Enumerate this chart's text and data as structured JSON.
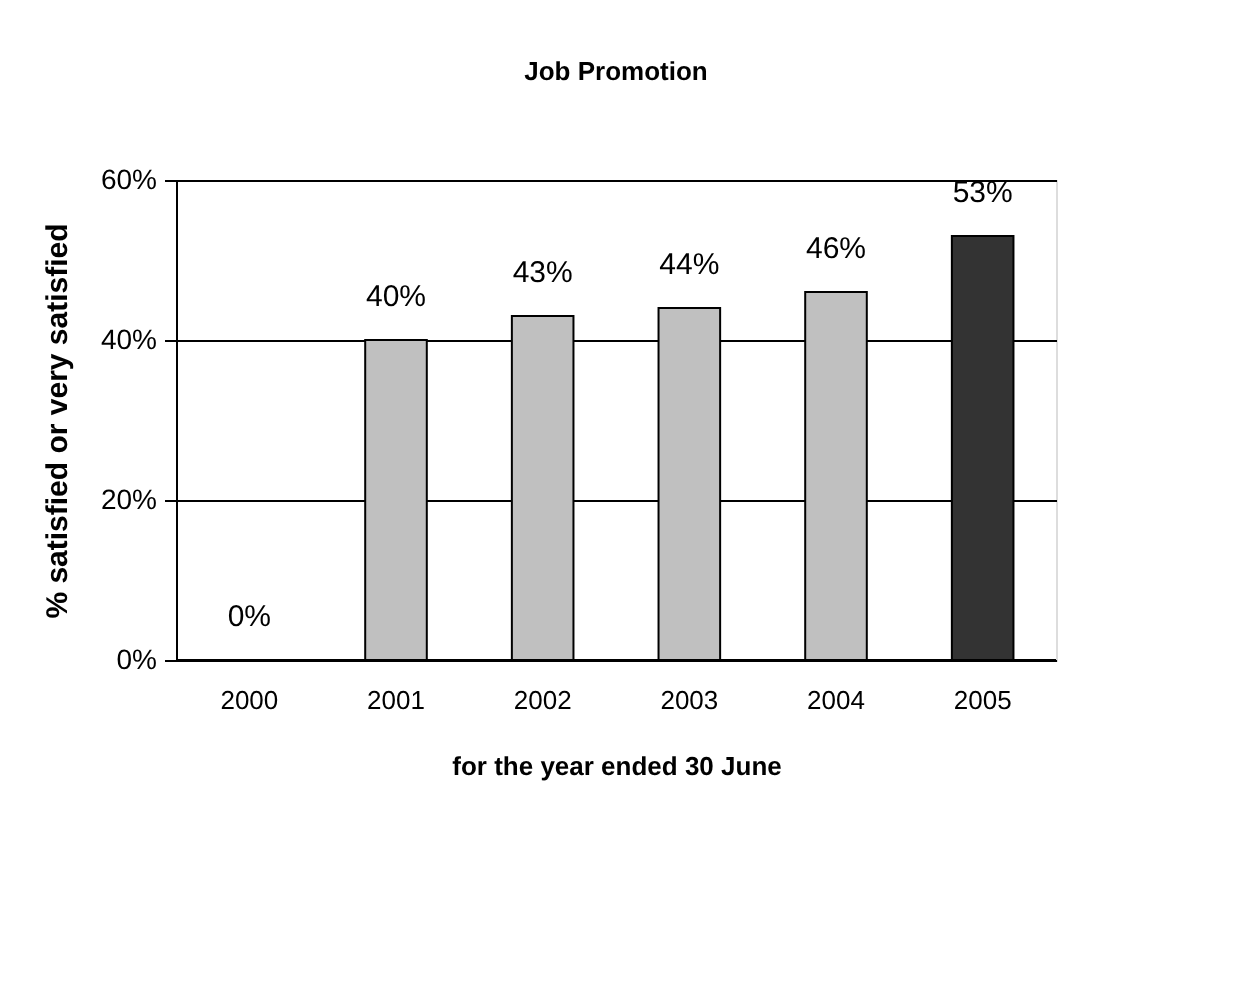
{
  "chart_data": {
    "type": "bar",
    "title": "Job Promotion",
    "xlabel": "for the year ended 30 June",
    "ylabel": "% satisfied or very satisfied",
    "categories": [
      "2000",
      "2001",
      "2002",
      "2003",
      "2004",
      "2005"
    ],
    "values": [
      0,
      40,
      43,
      44,
      46,
      53
    ],
    "colors": [
      "#c0c0c0",
      "#c0c0c0",
      "#c0c0c0",
      "#c0c0c0",
      "#c0c0c0",
      "#333333"
    ],
    "value_labels": [
      "0%",
      "40%",
      "43%",
      "44%",
      "46%",
      "53%"
    ],
    "ylim": [
      0,
      60
    ],
    "yticks": [
      {
        "value": 0,
        "label": "0%"
      },
      {
        "value": 20,
        "label": "20%"
      },
      {
        "value": 40,
        "label": "40%"
      },
      {
        "value": 60,
        "label": "60%"
      }
    ],
    "grid": "y"
  }
}
